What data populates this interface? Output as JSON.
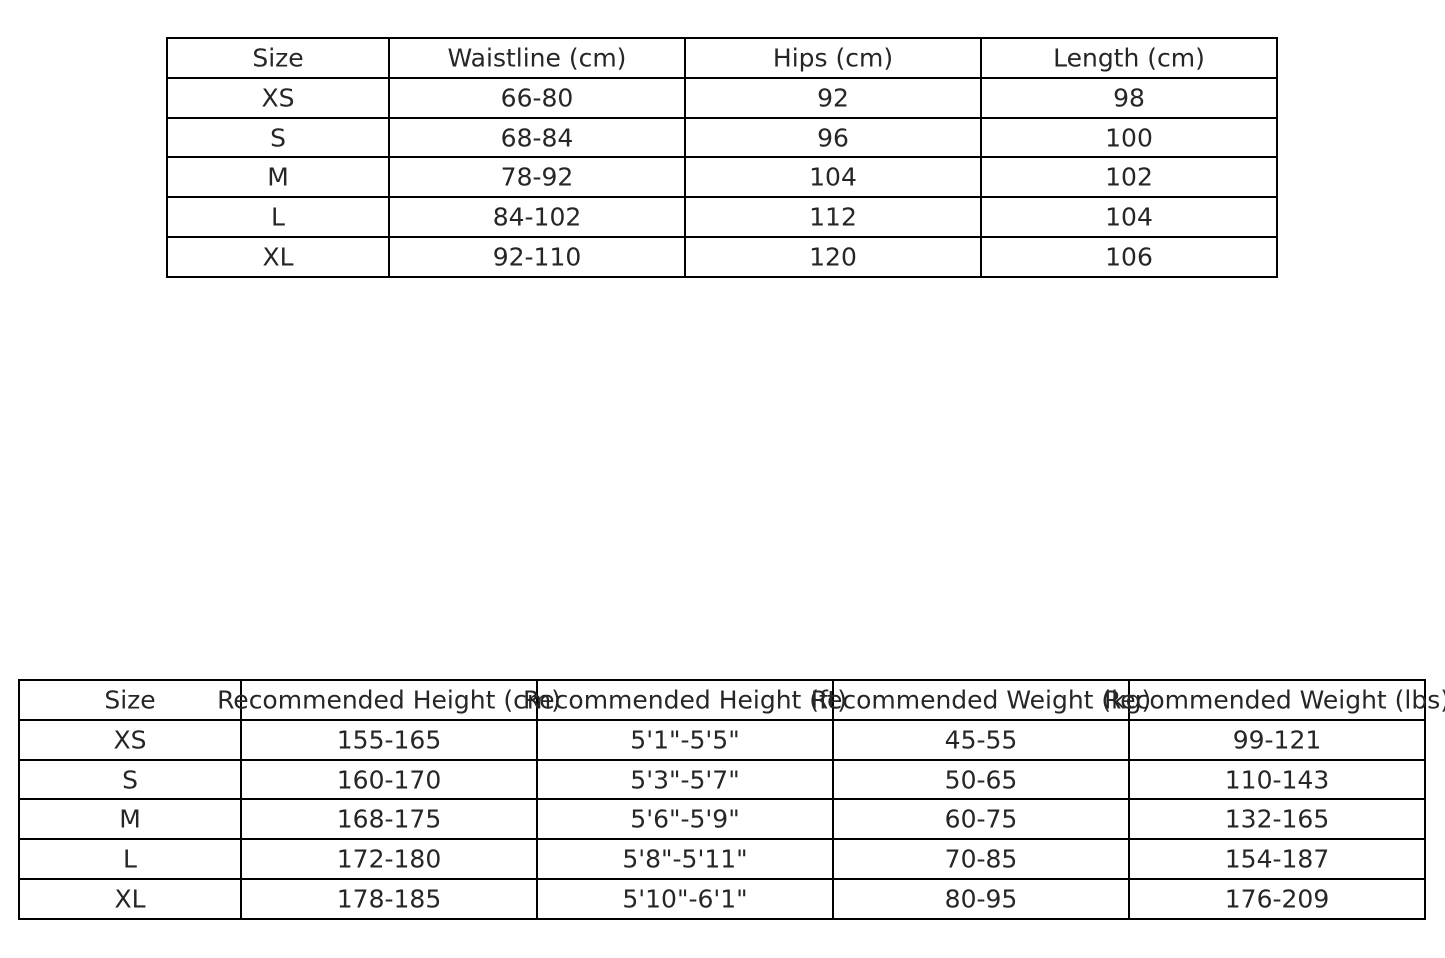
{
  "size_table": {
    "headers": [
      "Size",
      "Waistline (cm)",
      "Hips (cm)",
      "Length (cm)"
    ],
    "rows": [
      [
        "XS",
        "66-80",
        "92",
        "98"
      ],
      [
        "S",
        "68-84",
        "96",
        "100"
      ],
      [
        "M",
        "78-92",
        "104",
        "102"
      ],
      [
        "L",
        "84-102",
        "112",
        "104"
      ],
      [
        "XL",
        "92-110",
        "120",
        "106"
      ]
    ]
  },
  "recommendation_table": {
    "headers": [
      "Size",
      "Recommended Height (cm)",
      "Recommended Height (ft)",
      "Recommended Weight (kg)",
      "Recommended Weight (lbs)"
    ],
    "rows": [
      [
        "XS",
        "155-165",
        "5'1\"-5'5\"",
        "45-55",
        "99-121"
      ],
      [
        "S",
        "160-170",
        "5'3\"-5'7\"",
        "50-65",
        "110-143"
      ],
      [
        "M",
        "168-175",
        "5'6\"-5'9\"",
        "60-75",
        "132-165"
      ],
      [
        "L",
        "172-180",
        "5'8\"-5'11\"",
        "70-85",
        "154-187"
      ],
      [
        "XL",
        "178-185",
        "5'10\"-6'1\"",
        "80-95",
        "176-209"
      ]
    ]
  }
}
